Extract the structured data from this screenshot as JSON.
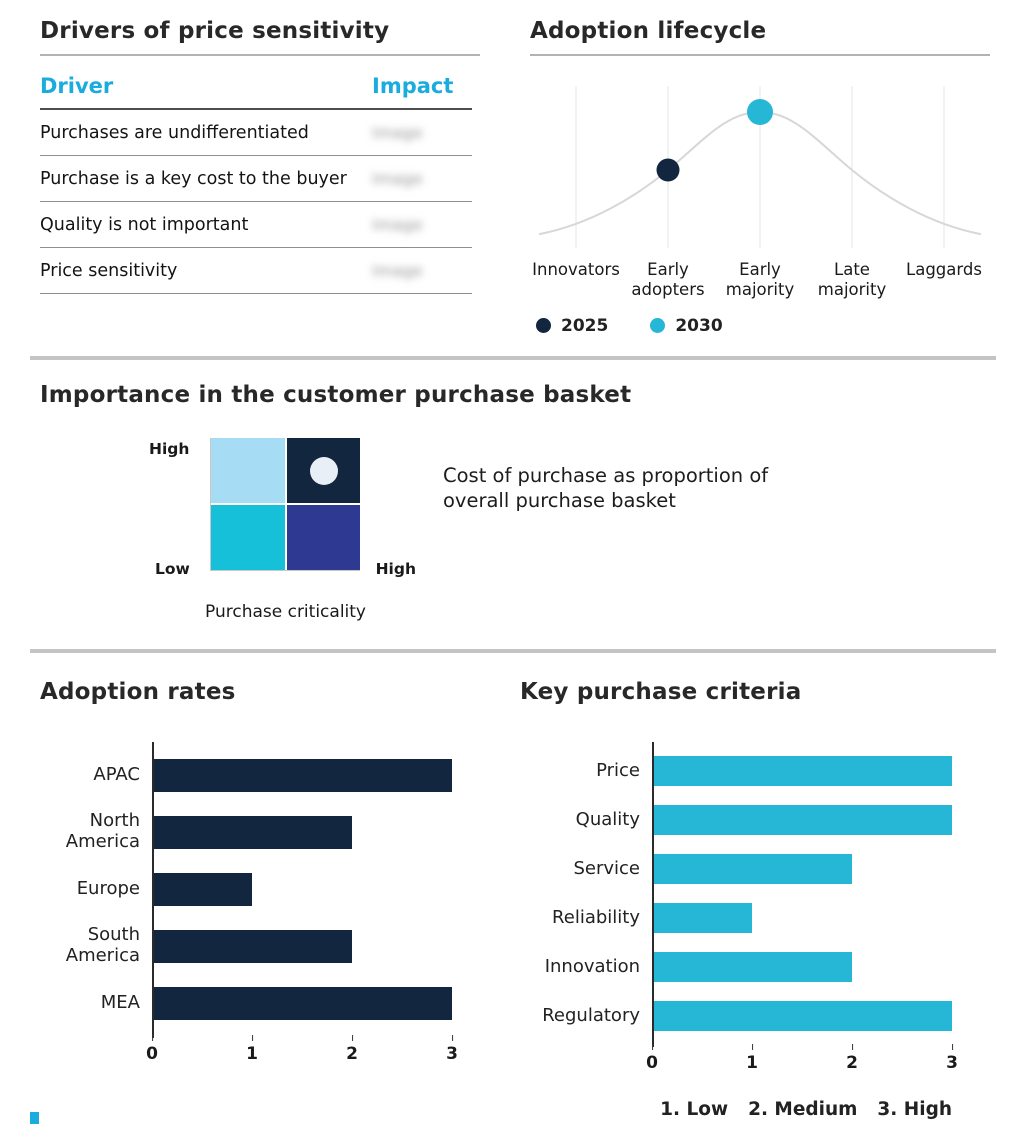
{
  "colors": {
    "navy": "#12263f",
    "cyan": "#26b7d7",
    "header_cyan": "#1aabdf",
    "curve_gray": "#d7d7d7",
    "grid_gray": "#e4e4e4",
    "divider_gray": "#c4c4c4",
    "accent_corner": "#1aabdf"
  },
  "drivers_panel": {
    "title": "Drivers of price sensitivity",
    "table": {
      "columns": {
        "driver": "Driver",
        "impact": "Impact"
      },
      "rows": [
        {
          "driver": "Purchases are undifferentiated",
          "impact": "Image"
        },
        {
          "driver": "Purchase is a key cost to the buyer",
          "impact": "Image"
        },
        {
          "driver": "Quality is not important",
          "impact": "Image"
        },
        {
          "driver": "Price sensitivity",
          "impact": "Image"
        }
      ],
      "impact_style": "blurred-redacted"
    }
  },
  "lifecycle_panel": {
    "title": "Adoption lifecycle",
    "legend": [
      {
        "label": "2025",
        "color": "#12263f"
      },
      {
        "label": "2030",
        "color": "#26b7d7"
      }
    ]
  },
  "basket_section": {
    "title": "Importance in the customer purchase basket",
    "y_high": "High",
    "y_low": "Low",
    "x_high": "High",
    "x_label": "Purchase criticality",
    "annotation": "Cost of purchase as proportion of overall purchase basket",
    "quadrant_colors": {
      "top_left": "#a6ddf4",
      "top_right": "#12263f",
      "bottom_left": "#17c0d9",
      "bottom_right": "#2e3a92"
    },
    "marker": {
      "quadrant": "top_right",
      "color": "#e9eff7"
    }
  },
  "chart_data": [
    {
      "id": "adoption_lifecycle",
      "type": "line",
      "title": "Adoption lifecycle",
      "curve": "bell",
      "x_categories": [
        "Innovators",
        "Early adopters",
        "Early majority",
        "Late majority",
        "Laggards"
      ],
      "points": [
        {
          "series": "2025",
          "x": "Early adopters",
          "color": "#12263f"
        },
        {
          "series": "2030",
          "x": "Early majority",
          "color": "#26b7d7"
        }
      ],
      "legend_position": "bottom",
      "grid": "vertical"
    },
    {
      "id": "adoption_rates",
      "type": "bar",
      "orientation": "horizontal",
      "title": "Adoption rates",
      "categories": [
        "APAC",
        "North America",
        "Europe",
        "South America",
        "MEA"
      ],
      "values": [
        3,
        2,
        1,
        2,
        3
      ],
      "xlim": [
        0,
        3
      ],
      "ticks": [
        0,
        1,
        2,
        3
      ],
      "bar_color": "#12263f"
    },
    {
      "id": "key_purchase_criteria",
      "type": "bar",
      "orientation": "horizontal",
      "title": "Key purchase criteria",
      "categories": [
        "Price",
        "Quality",
        "Service",
        "Reliability",
        "Innovation",
        "Regulatory"
      ],
      "values": [
        3,
        3,
        2,
        1,
        2,
        3
      ],
      "xlim": [
        0,
        3
      ],
      "ticks": [
        0,
        1,
        2,
        3
      ],
      "bar_color": "#26b7d7",
      "scale_labels": [
        "1. Low",
        "2. Medium",
        "3. High"
      ]
    }
  ]
}
